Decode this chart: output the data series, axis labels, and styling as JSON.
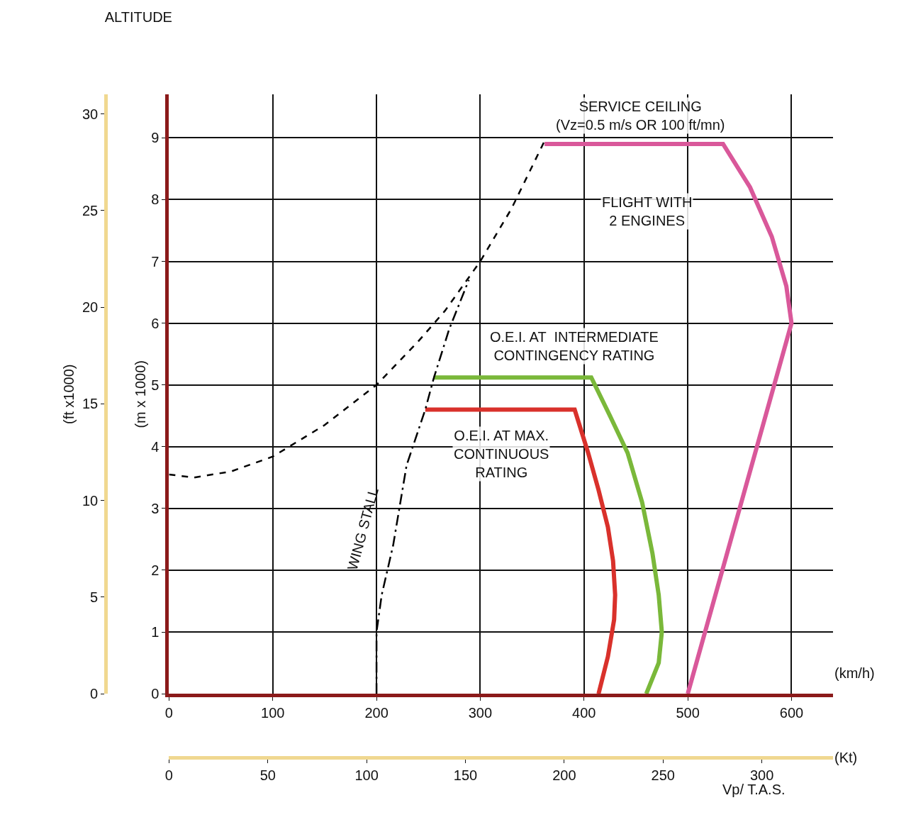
{
  "chart_data": {
    "type": "line",
    "title": "ALTITUDE",
    "xlabel": "(km/h)",
    "ylabel": "(m x 1000)",
    "y2label": "(ft x1000)",
    "x2label": "(Kt)",
    "xlim": [
      0,
      640
    ],
    "xticks": [
      0,
      100,
      200,
      300,
      400,
      500,
      600
    ],
    "ylim": [
      0,
      9.7
    ],
    "yticks": [
      0,
      1,
      2,
      3,
      4,
      5,
      6,
      7,
      8,
      9
    ],
    "y2lim": [
      0,
      31
    ],
    "y2ticks": [
      0,
      5,
      10,
      15,
      20,
      25,
      30
    ],
    "x2lim": [
      0,
      336
    ],
    "x2ticks": [
      0,
      50,
      100,
      150,
      200,
      250,
      300
    ],
    "grid": true,
    "marker": "none",
    "series": [
      {
        "color": "#d9589a",
        "line_style": "solid",
        "x": [
          362,
          534,
          560,
          581,
          595,
          600,
          500
        ],
        "values": [
          8.9,
          8.9,
          8.2,
          7.4,
          6.6,
          6.0,
          0
        ]
      },
      {
        "color": "#7ab83a",
        "line_style": "solid",
        "x": [
          255,
          407,
          425,
          442,
          456,
          466,
          472,
          475,
          472,
          460
        ],
        "values": [
          5.12,
          5.12,
          4.5,
          3.9,
          3.1,
          2.27,
          1.6,
          1.0,
          0.5,
          0
        ]
      },
      {
        "color": "#d9312b",
        "line_style": "solid",
        "x": [
          247,
          391,
          404,
          414,
          423,
          428,
          430,
          429,
          423,
          414
        ],
        "values": [
          4.6,
          4.6,
          3.9,
          3.3,
          2.7,
          2.15,
          1.6,
          1.2,
          0.6,
          0
        ]
      },
      {
        "color": "#000000",
        "line_style": "dashed",
        "x": [
          0,
          24,
          60,
          100,
          150,
          200,
          240,
          266,
          300,
          330,
          362
        ],
        "values": [
          3.55,
          3.5,
          3.6,
          3.84,
          4.35,
          5.0,
          5.7,
          6.2,
          7.0,
          7.85,
          8.95
        ]
      },
      {
        "color": "#000000",
        "line_style": "dashdot",
        "x": [
          200,
          200,
          205,
          216,
          229,
          247,
          255,
          270,
          289
        ],
        "values": [
          0,
          1.0,
          1.6,
          2.4,
          3.7,
          4.6,
          5.1,
          5.9,
          6.7
        ]
      }
    ],
    "annotations": [
      "SERVICE CEILING\n(Vz=0.5 m/s OR 100 ft/mn)",
      "FLIGHT WITH\n2 ENGINES",
      "O.E.I. AT  INTERMEDIATE\nCONTINGENCY RATING",
      "O.E.I. AT MAX.\nCONTINUOUS\nRATING",
      "WING STALL",
      "Vp/ T.A.S."
    ]
  }
}
